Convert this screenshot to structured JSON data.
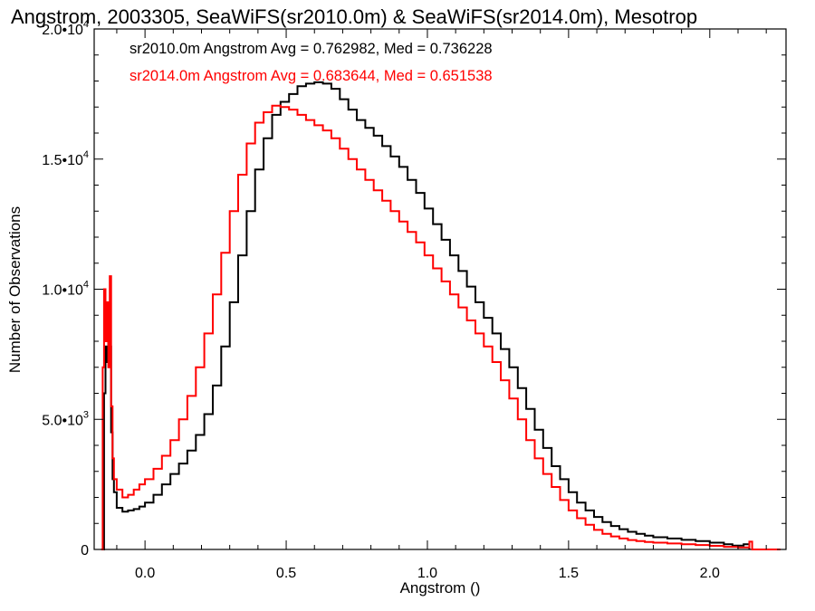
{
  "chart_data": {
    "type": "line",
    "title": "Angstrom, 2003305, SeaWiFS(sr2010.0m) & SeaWiFS(sr2014.0m), Mesotrop",
    "xlabel": "Angstrom ()",
    "ylabel": "Number of Observations",
    "xlim": [
      -0.18,
      2.27
    ],
    "ylim": [
      0,
      20000
    ],
    "x_ticks": [
      {
        "value": 0.0,
        "label": "0.0"
      },
      {
        "value": 0.5,
        "label": "0.5"
      },
      {
        "value": 1.0,
        "label": "1.0"
      },
      {
        "value": 1.5,
        "label": "1.5"
      },
      {
        "value": 2.0,
        "label": "2.0"
      }
    ],
    "y_ticks": [
      {
        "value": 0,
        "label": "0",
        "mant": "",
        "exp": ""
      },
      {
        "value": 5000,
        "label": "5.0•10^3",
        "mant": "5.0•10",
        "exp": "3"
      },
      {
        "value": 10000,
        "label": "1.0•10^4",
        "mant": "1.0•10",
        "exp": "4"
      },
      {
        "value": 15000,
        "label": "1.5•10^4",
        "mant": "1.5•10",
        "exp": "4"
      },
      {
        "value": 20000,
        "label": "2.0•10^4",
        "mant": "2.0•10",
        "exp": "4"
      }
    ],
    "legend_placement": "top-left",
    "legend": [
      {
        "text": "sr2010.0m Angstrom Avg = 0.762982, Med = 0.736228",
        "color": "#000000"
      },
      {
        "text": "sr2014.0m Angstrom Avg = 0.683644, Med = 0.651538",
        "color": "#ff0000"
      }
    ],
    "series": [
      {
        "color": "#000000",
        "points": [
          [
            -0.15,
            0
          ],
          [
            -0.145,
            6000
          ],
          [
            -0.14,
            7800
          ],
          [
            -0.135,
            7200
          ],
          [
            -0.13,
            9000
          ],
          [
            -0.125,
            7800
          ],
          [
            -0.12,
            4500
          ],
          [
            -0.115,
            2700
          ],
          [
            -0.11,
            2200
          ],
          [
            -0.1,
            1600
          ],
          [
            -0.08,
            1450
          ],
          [
            -0.06,
            1500
          ],
          [
            -0.04,
            1550
          ],
          [
            -0.02,
            1650
          ],
          [
            0.0,
            1800
          ],
          [
            0.03,
            2100
          ],
          [
            0.06,
            2500
          ],
          [
            0.09,
            2900
          ],
          [
            0.12,
            3300
          ],
          [
            0.15,
            3800
          ],
          [
            0.18,
            4400
          ],
          [
            0.21,
            5200
          ],
          [
            0.24,
            6300
          ],
          [
            0.27,
            7800
          ],
          [
            0.3,
            9500
          ],
          [
            0.33,
            11300
          ],
          [
            0.36,
            13000
          ],
          [
            0.39,
            14600
          ],
          [
            0.42,
            15800
          ],
          [
            0.45,
            16700
          ],
          [
            0.48,
            17200
          ],
          [
            0.51,
            17500
          ],
          [
            0.54,
            17800
          ],
          [
            0.57,
            17900
          ],
          [
            0.6,
            17950
          ],
          [
            0.63,
            17900
          ],
          [
            0.66,
            17700
          ],
          [
            0.69,
            17300
          ],
          [
            0.72,
            16900
          ],
          [
            0.75,
            16500
          ],
          [
            0.78,
            16200
          ],
          [
            0.81,
            15900
          ],
          [
            0.84,
            15500
          ],
          [
            0.87,
            15100
          ],
          [
            0.9,
            14700
          ],
          [
            0.93,
            14200
          ],
          [
            0.96,
            13700
          ],
          [
            0.99,
            13100
          ],
          [
            1.02,
            12500
          ],
          [
            1.05,
            11900
          ],
          [
            1.08,
            11300
          ],
          [
            1.11,
            10700
          ],
          [
            1.14,
            10100
          ],
          [
            1.17,
            9500
          ],
          [
            1.2,
            8900
          ],
          [
            1.23,
            8300
          ],
          [
            1.26,
            7700
          ],
          [
            1.29,
            7000
          ],
          [
            1.32,
            6200
          ],
          [
            1.35,
            5400
          ],
          [
            1.38,
            4600
          ],
          [
            1.41,
            3900
          ],
          [
            1.44,
            3200
          ],
          [
            1.47,
            2700
          ],
          [
            1.5,
            2200
          ],
          [
            1.53,
            1800
          ],
          [
            1.56,
            1500
          ],
          [
            1.59,
            1250
          ],
          [
            1.62,
            1050
          ],
          [
            1.65,
            900
          ],
          [
            1.68,
            780
          ],
          [
            1.71,
            680
          ],
          [
            1.74,
            600
          ],
          [
            1.77,
            530
          ],
          [
            1.8,
            470
          ],
          [
            1.85,
            420
          ],
          [
            1.9,
            370
          ],
          [
            1.95,
            320
          ],
          [
            2.0,
            260
          ],
          [
            2.05,
            200
          ],
          [
            2.08,
            150
          ],
          [
            2.12,
            200
          ],
          [
            2.14,
            0
          ]
        ]
      },
      {
        "color": "#ff0000",
        "points": [
          [
            -0.155,
            0
          ],
          [
            -0.15,
            7000
          ],
          [
            -0.145,
            10000
          ],
          [
            -0.14,
            8000
          ],
          [
            -0.135,
            9500
          ],
          [
            -0.13,
            7000
          ],
          [
            -0.125,
            10500
          ],
          [
            -0.12,
            5500
          ],
          [
            -0.115,
            3500
          ],
          [
            -0.11,
            2700
          ],
          [
            -0.1,
            2300
          ],
          [
            -0.08,
            2000
          ],
          [
            -0.06,
            2100
          ],
          [
            -0.04,
            2300
          ],
          [
            -0.02,
            2500
          ],
          [
            0.0,
            2700
          ],
          [
            0.03,
            3100
          ],
          [
            0.06,
            3600
          ],
          [
            0.09,
            4200
          ],
          [
            0.12,
            5000
          ],
          [
            0.15,
            5900
          ],
          [
            0.18,
            7000
          ],
          [
            0.21,
            8300
          ],
          [
            0.24,
            9800
          ],
          [
            0.27,
            11400
          ],
          [
            0.3,
            13000
          ],
          [
            0.33,
            14400
          ],
          [
            0.36,
            15600
          ],
          [
            0.39,
            16400
          ],
          [
            0.42,
            16800
          ],
          [
            0.45,
            17050
          ],
          [
            0.48,
            17000
          ],
          [
            0.51,
            16900
          ],
          [
            0.54,
            16700
          ],
          [
            0.57,
            16500
          ],
          [
            0.6,
            16300
          ],
          [
            0.63,
            16100
          ],
          [
            0.66,
            15800
          ],
          [
            0.69,
            15400
          ],
          [
            0.72,
            15000
          ],
          [
            0.75,
            14600
          ],
          [
            0.78,
            14200
          ],
          [
            0.81,
            13800
          ],
          [
            0.84,
            13400
          ],
          [
            0.87,
            13000
          ],
          [
            0.9,
            12600
          ],
          [
            0.93,
            12200
          ],
          [
            0.96,
            11800
          ],
          [
            0.99,
            11300
          ],
          [
            1.02,
            10800
          ],
          [
            1.05,
            10300
          ],
          [
            1.08,
            9800
          ],
          [
            1.11,
            9300
          ],
          [
            1.14,
            8800
          ],
          [
            1.17,
            8300
          ],
          [
            1.2,
            7800
          ],
          [
            1.23,
            7200
          ],
          [
            1.26,
            6500
          ],
          [
            1.29,
            5800
          ],
          [
            1.32,
            5000
          ],
          [
            1.35,
            4200
          ],
          [
            1.38,
            3500
          ],
          [
            1.41,
            2900
          ],
          [
            1.44,
            2400
          ],
          [
            1.47,
            1900
          ],
          [
            1.5,
            1500
          ],
          [
            1.53,
            1200
          ],
          [
            1.56,
            950
          ],
          [
            1.59,
            750
          ],
          [
            1.62,
            600
          ],
          [
            1.65,
            500
          ],
          [
            1.68,
            420
          ],
          [
            1.71,
            360
          ],
          [
            1.74,
            320
          ],
          [
            1.77,
            290
          ],
          [
            1.8,
            260
          ],
          [
            1.85,
            230
          ],
          [
            1.9,
            200
          ],
          [
            1.95,
            170
          ],
          [
            2.0,
            140
          ],
          [
            2.05,
            100
          ],
          [
            2.1,
            80
          ],
          [
            2.14,
            300
          ],
          [
            2.15,
            0
          ],
          [
            2.25,
            0
          ]
        ]
      }
    ]
  }
}
